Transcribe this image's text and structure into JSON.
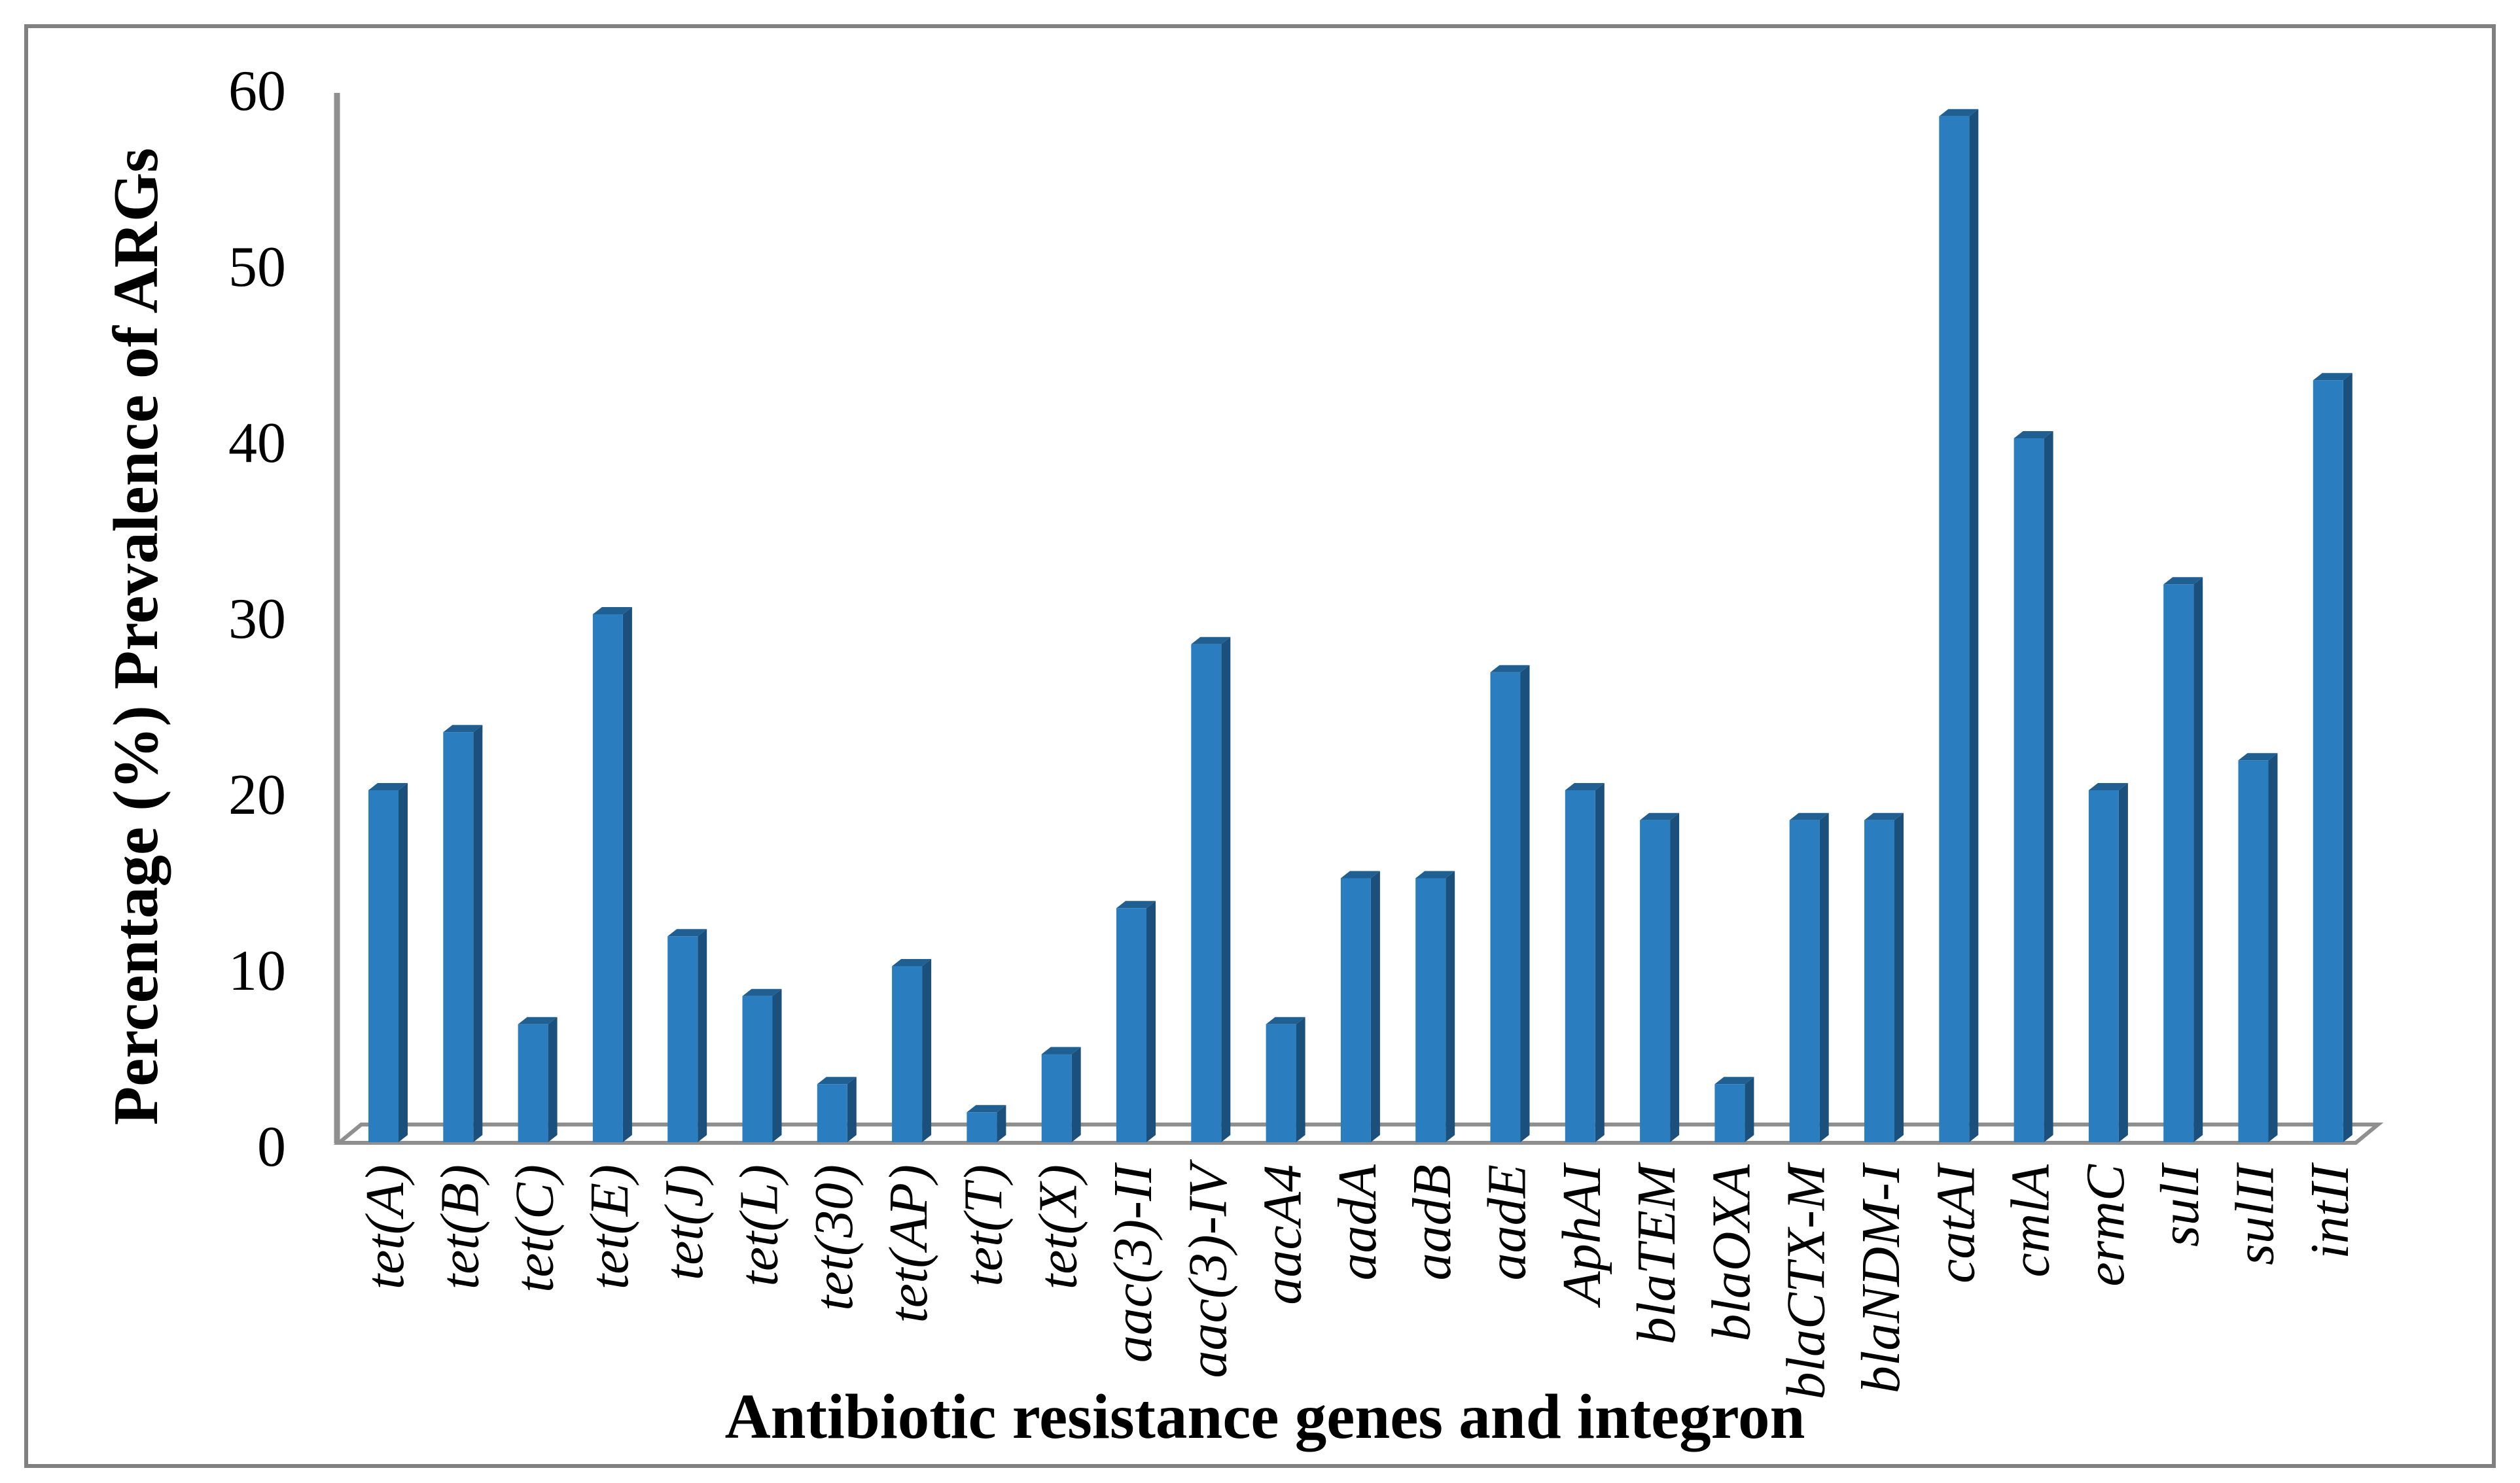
{
  "figure": {
    "background": "#ffffff",
    "border_color": "#808080"
  },
  "chart_data": {
    "type": "bar",
    "title": "",
    "xlabel": "Antibiotic resistance genes and integron",
    "ylabel": "Percentage (%) Prevalence of ARGs",
    "categories": [
      "tet(A)",
      "tet(B)",
      "tet(C)",
      "tet(E)",
      "tet(J)",
      "tet(L)",
      "tet(30)",
      "tet(AP)",
      "tet(T)",
      "tet(X)",
      "aac(3)-II",
      "aac(3)-IV",
      "aacA4",
      "aadA",
      "aadB",
      "aadE",
      "AphAI",
      "blaTEM",
      "blaOXA",
      "blaCTX-M",
      "blaNDM-I",
      "catAI",
      "cmlA",
      "ermC",
      "sulI",
      "sulII",
      "intII"
    ],
    "values": [
      20,
      23.3,
      6.7,
      30,
      11.7,
      8.3,
      3.3,
      10,
      1.7,
      5,
      13.3,
      28.3,
      6.7,
      15,
      15,
      26.7,
      20,
      18.3,
      3.3,
      18.3,
      18.3,
      58.3,
      40,
      20,
      31.7,
      21.7,
      43.3
    ],
    "yticks": [
      0,
      10,
      20,
      30,
      40,
      50,
      60
    ],
    "ylim": [
      0,
      60
    ],
    "grid": false,
    "legend": "none",
    "bar_style": "3d",
    "colors": {
      "bar_front": "#2A7EC0",
      "bar_side": "#1B4F7C",
      "bar_top": "#1F5F92",
      "axis_line": "#8F8F8F",
      "text": "#000000"
    }
  }
}
